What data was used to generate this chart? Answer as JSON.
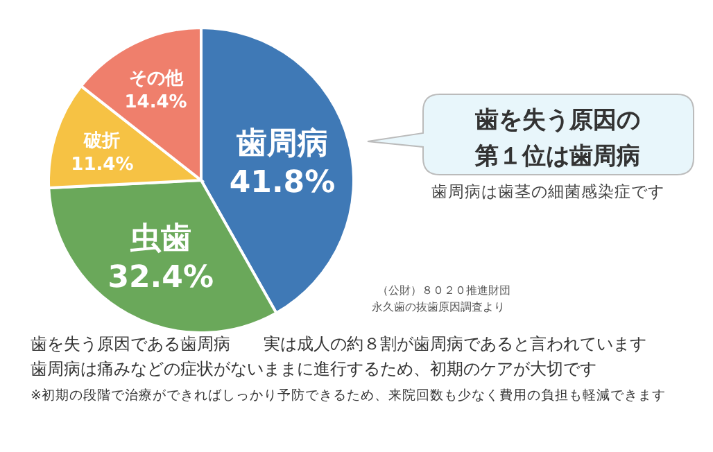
{
  "chart_data": {
    "type": "pie",
    "title": "歯を失う原因の第１位は歯周病",
    "subtitle": "歯周病は歯茎の細菌感染症です",
    "categories": [
      "歯周病",
      "虫歯",
      "破折",
      "その他"
    ],
    "values": [
      41.8,
      32.4,
      11.4,
      14.4
    ],
    "value_labels": [
      "41.8%",
      "32.4%",
      "11.4%",
      "14.4%"
    ],
    "colors": [
      "#3f79b6",
      "#6aa85a",
      "#f6c244",
      "#ef7f6c"
    ],
    "legend": false,
    "annotations": [
      "（公財）８０２０推進財団",
      "永久歯の抜歯原因調査より",
      "歯を失う原因である歯周病　　実は成人の約８割が歯周病であると言われています",
      "歯周病は痛みなどの症状がないままに進行するため、初期のケアが大切です",
      "※初期の段階で治療ができればしっかり予防できるため、来院回数も少なく費用の負担も軽減できます"
    ]
  }
}
